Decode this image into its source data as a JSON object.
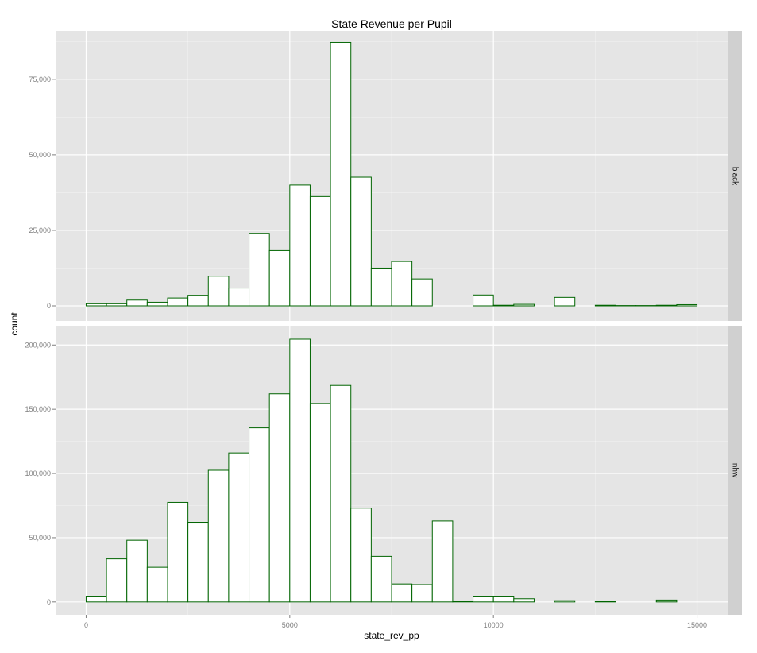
{
  "chart_data": {
    "type": "bar",
    "title": "State Revenue per Pupil",
    "xlabel": "state_rev_pp",
    "ylabel": "count",
    "xlim": [
      -750,
      15750
    ],
    "x_ticks": [
      0,
      5000,
      10000,
      15000
    ],
    "x_tick_labels": [
      "0",
      "5000",
      "10000",
      "15000"
    ],
    "bin_width": 500,
    "bin_starts": [
      0,
      500,
      1000,
      1500,
      2000,
      2500,
      3000,
      3500,
      4000,
      4500,
      5000,
      5500,
      6000,
      6500,
      7000,
      7500,
      8000,
      8500,
      9000,
      9500,
      10000,
      10500,
      11000,
      11500,
      12000,
      12500,
      13000,
      13500,
      14000,
      14500
    ],
    "colors": {
      "panel_bg": "#e5e5e5",
      "strip_bg": "#d0d0d0",
      "bar_fill": "#ffffff",
      "bar_stroke": "#006400",
      "grid": "#ffffff"
    },
    "facets": [
      {
        "name": "black",
        "ylim": [
          -5000,
          91000
        ],
        "y_ticks": [
          0,
          25000,
          50000,
          75000
        ],
        "y_tick_labels": [
          "0",
          "25,000",
          "50,000",
          "75,000"
        ],
        "values": [
          700,
          700,
          1900,
          1200,
          2600,
          3500,
          9800,
          5900,
          24000,
          18300,
          40000,
          36200,
          87200,
          42600,
          12500,
          14700,
          8900,
          0,
          0,
          3600,
          200,
          500,
          0,
          2800,
          0,
          200,
          100,
          100,
          200,
          400
        ]
      },
      {
        "name": "nhw",
        "ylim": [
          -10000,
          215000
        ],
        "y_ticks": [
          0,
          50000,
          100000,
          150000,
          200000
        ],
        "y_tick_labels": [
          "0",
          "50,000",
          "100,000",
          "150,000",
          "200,000"
        ],
        "values": [
          4500,
          33500,
          48000,
          27000,
          77500,
          62000,
          102500,
          116000,
          135500,
          162000,
          204500,
          154500,
          168500,
          73000,
          35500,
          14000,
          13500,
          63000,
          500,
          4500,
          4500,
          2500,
          0,
          1000,
          0,
          600,
          0,
          0,
          1500,
          0
        ]
      }
    ]
  }
}
